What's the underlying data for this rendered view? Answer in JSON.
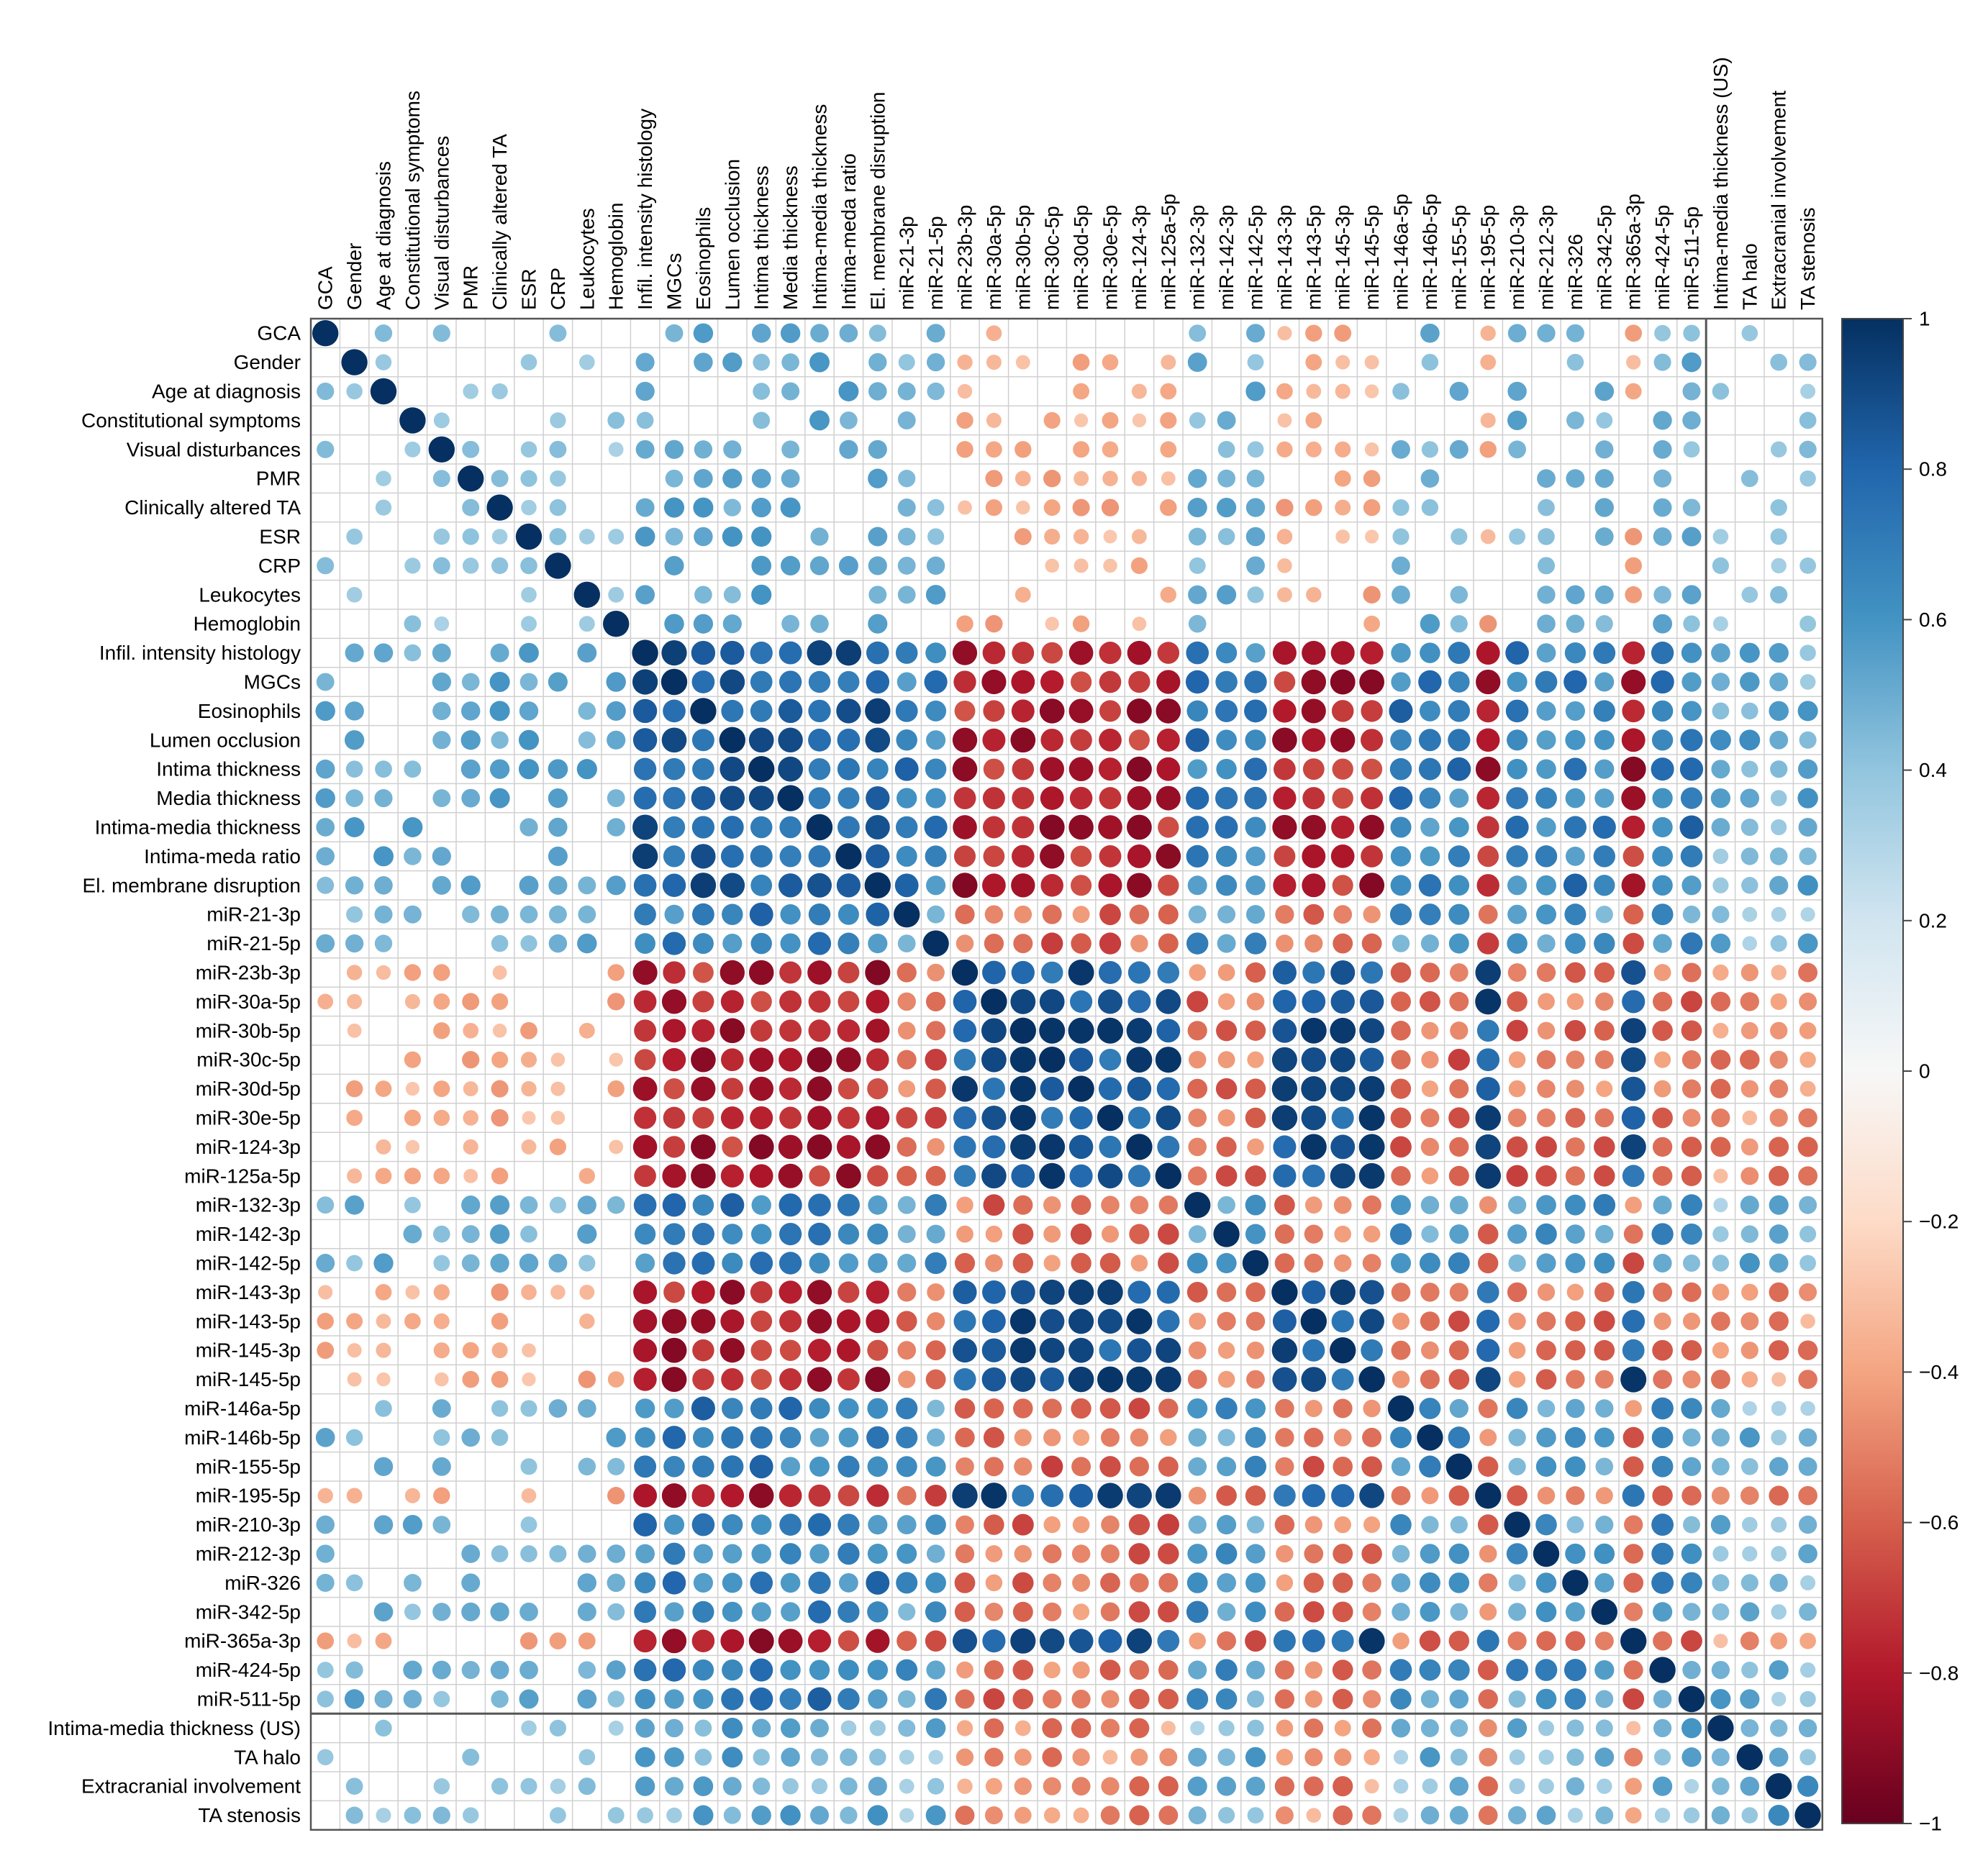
{
  "chart_data": {
    "type": "heatmap",
    "subtype": "correlation-circle-matrix",
    "title": "",
    "variables": [
      "GCA",
      "Gender",
      "Age at diagnosis",
      "Constitutional symptoms",
      "Visual disturbances",
      "PMR",
      "Clinically altered TA",
      "ESR",
      "CRP",
      "Leukocytes",
      "Hemoglobin",
      "Infil. intensity histology",
      "MGCs",
      "Eosinophils",
      "Lumen occlusion",
      "Intima thickness",
      "Media thickness",
      "Intima-media thickness",
      "Intima-meda ratio",
      "El. membrane disruption",
      "miR-21-3p",
      "miR-21-5p",
      "miR-23b-3p",
      "miR-30a-5p",
      "miR-30b-5p",
      "miR-30c-5p",
      "miR-30d-5p",
      "miR-30e-5p",
      "miR-124-3p",
      "miR-125a-5p",
      "miR-132-3p",
      "miR-142-3p",
      "miR-142-5p",
      "miR-143-3p",
      "miR-143-5p",
      "miR-145-3p",
      "miR-145-5p",
      "miR-146a-5p",
      "miR-146b-5p",
      "miR-155-5p",
      "miR-195-5p",
      "miR-210-3p",
      "miR-212-3p",
      "miR-326",
      "miR-342-5p",
      "miR-365a-3p",
      "miR-424-5p",
      "miR-511-5p",
      "Intima-media thickness (US)",
      "TA halo",
      "Extracranial involvement",
      "TA stenosis"
    ],
    "groups": {
      "clinical": [
        "GCA",
        "Gender",
        "Age at diagnosis",
        "Constitutional symptoms",
        "Visual disturbances",
        "PMR",
        "Clinically altered TA",
        "ESR",
        "CRP",
        "Leukocytes",
        "Hemoglobin"
      ],
      "histology": [
        "Infil. intensity histology",
        "MGCs",
        "Eosinophils",
        "Lumen occlusion",
        "Intima thickness",
        "Media thickness",
        "Intima-media thickness",
        "Intima-meda ratio",
        "El. membrane disruption"
      ],
      "mirna_up": [
        "miR-21-3p",
        "miR-21-5p",
        "miR-132-3p",
        "miR-142-3p",
        "miR-142-5p",
        "miR-146a-5p",
        "miR-146b-5p",
        "miR-155-5p",
        "miR-210-3p",
        "miR-212-3p",
        "miR-326",
        "miR-342-5p",
        "miR-424-5p",
        "miR-511-5p"
      ],
      "mirna_down": [
        "miR-23b-3p",
        "miR-30a-5p",
        "miR-30b-5p",
        "miR-30c-5p",
        "miR-30d-5p",
        "miR-30e-5p",
        "miR-124-3p",
        "miR-125a-5p",
        "miR-143-3p",
        "miR-143-5p",
        "miR-145-3p",
        "miR-145-5p",
        "miR-195-5p",
        "miR-365a-3p"
      ],
      "ultrasound": [
        "Intima-media thickness (US)",
        "TA halo",
        "Extracranial involvement",
        "TA stenosis"
      ]
    },
    "separator_after": "miR-511-5p",
    "legend": {
      "range": [
        -1,
        1
      ],
      "ticks": [
        "1",
        "0.8",
        "0.6",
        "0.4",
        "0.2",
        "0",
        "−0.2",
        "−0.4",
        "−0.6",
        "−0.8",
        "−1"
      ],
      "tick_values": [
        1,
        0.8,
        0.6,
        0.4,
        0.2,
        0,
        -0.2,
        -0.4,
        -0.6,
        -0.8,
        -1
      ],
      "placement": "right",
      "colors": [
        "#67001f",
        "#b2182b",
        "#d6604d",
        "#f4a582",
        "#fddbc7",
        "#f7f7f7",
        "#d1e5f0",
        "#92c5de",
        "#4393c3",
        "#2166ac",
        "#053061"
      ]
    },
    "diagonal": 1,
    "significance_threshold": 0.15,
    "representative_values": {
      "mirna_up_vs_mirna_up": 0.58,
      "mirna_down_vs_mirna_down": 0.85,
      "mirna_up_vs_mirna_down": -0.55,
      "histology_vs_histology": 0.8,
      "histology_vs_mirna_up": 0.68,
      "histology_vs_mirna_down": -0.78,
      "clinical_vs_histology": 0.45,
      "clinical_vs_mirna": 0.42
    }
  }
}
